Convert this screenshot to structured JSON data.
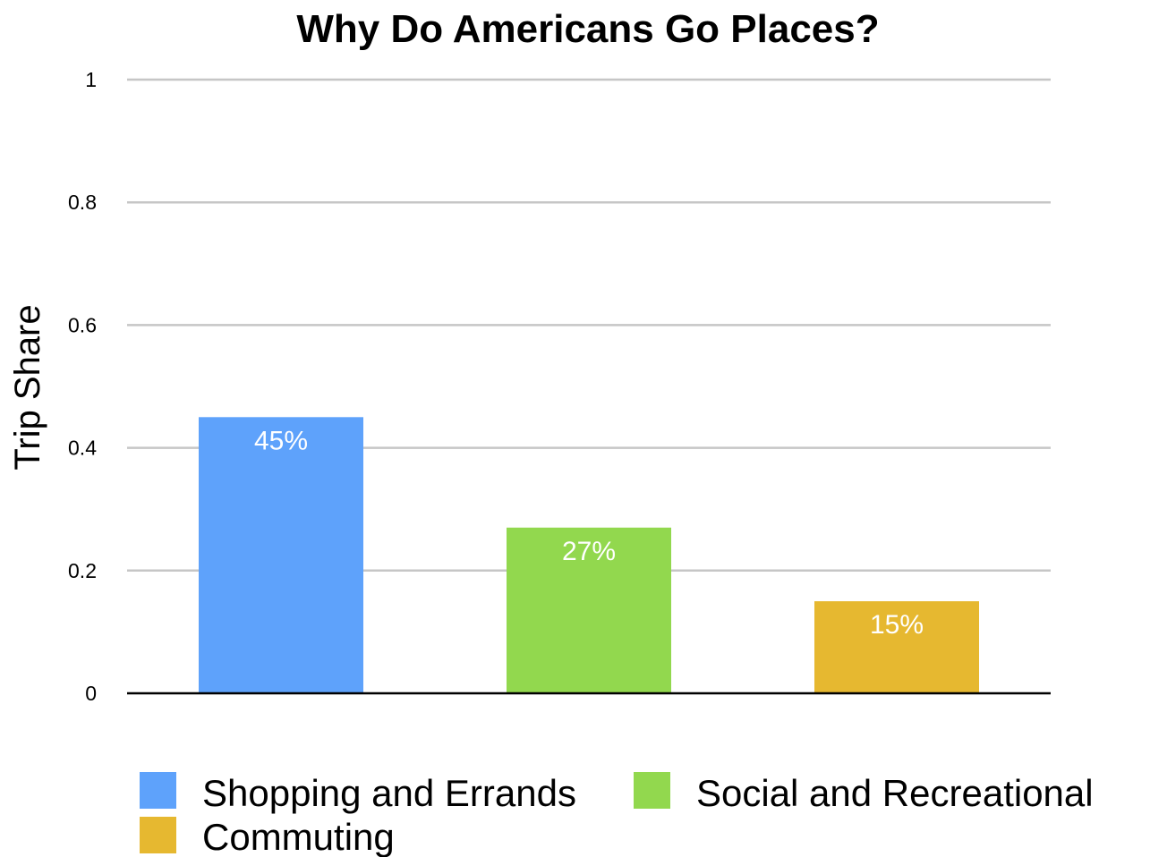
{
  "chart_data": {
    "type": "bar",
    "title": "Why Do Americans Go Places?",
    "ylabel": "Trip Share",
    "xlabel": "",
    "ylim": [
      0,
      1
    ],
    "yticks": [
      {
        "value": 0,
        "label": "0"
      },
      {
        "value": 0.2,
        "label": "0.2"
      },
      {
        "value": 0.4,
        "label": "0.4"
      },
      {
        "value": 0.6,
        "label": "0.6"
      },
      {
        "value": 0.8,
        "label": "0.8"
      },
      {
        "value": 1,
        "label": "1"
      }
    ],
    "grid": true,
    "legend_position": "bottom",
    "series": [
      {
        "name": "Shopping and Errands",
        "value": 0.45,
        "data_label": "45%",
        "color": "#5ea2fb"
      },
      {
        "name": "Social and Recreational",
        "value": 0.27,
        "data_label": "27%",
        "color": "#92d84e"
      },
      {
        "name": "Commuting",
        "value": 0.15,
        "data_label": "15%",
        "color": "#e6b830"
      }
    ]
  }
}
